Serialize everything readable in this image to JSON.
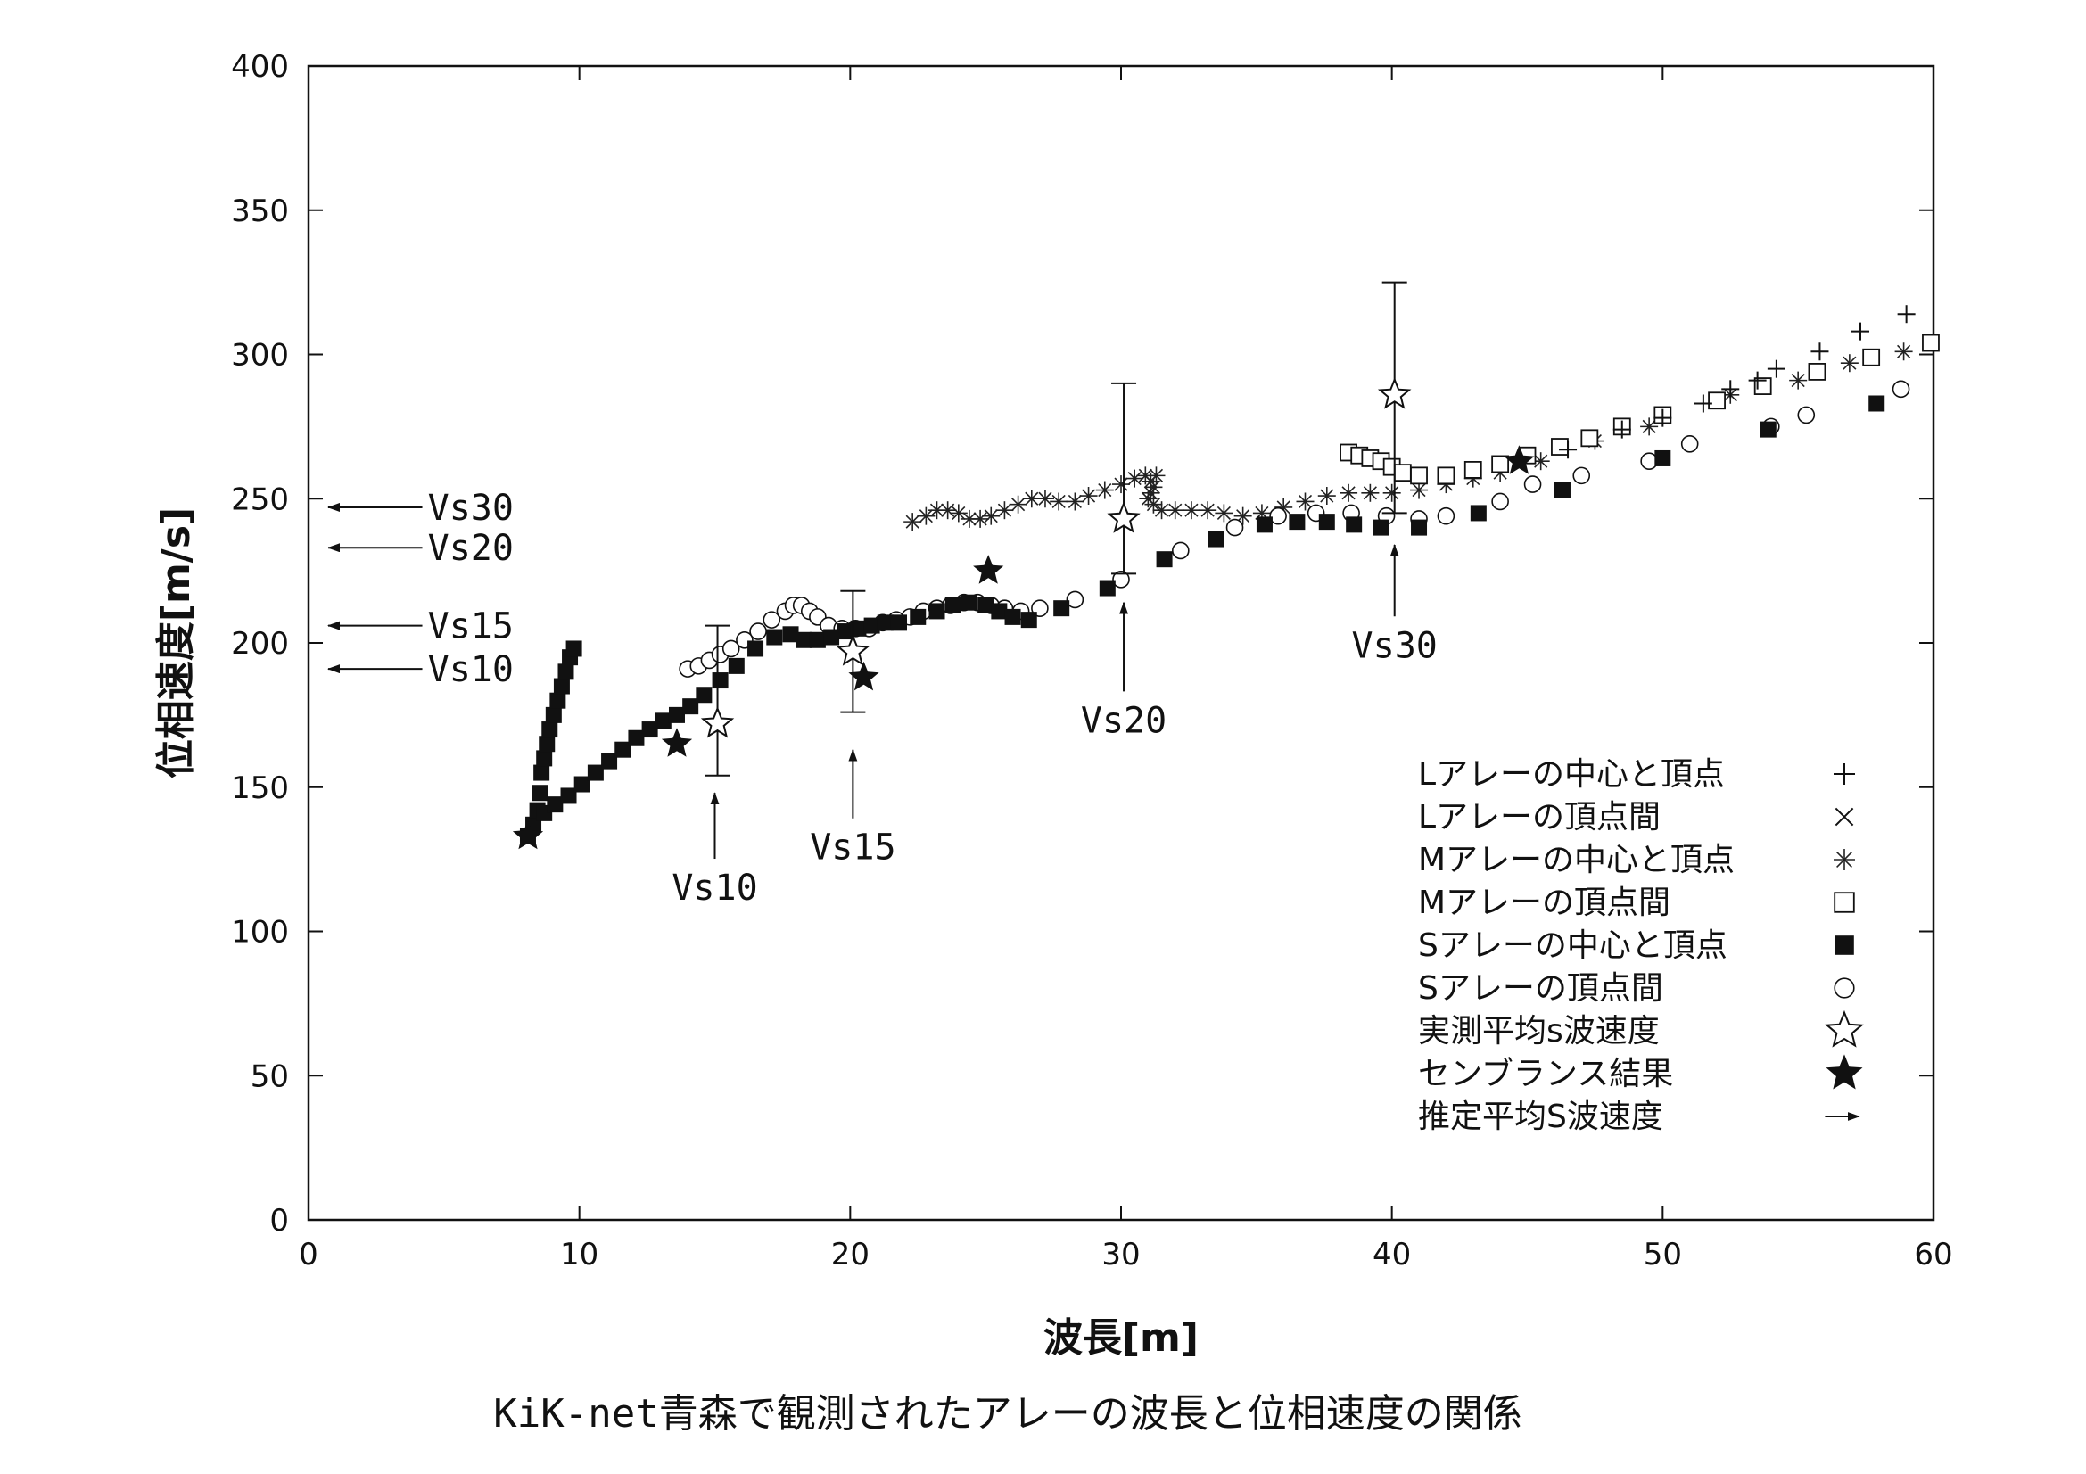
{
  "chart_data": {
    "type": "scatter",
    "title": "",
    "caption": "KiK-net青森で観測されたアレーの波長と位相速度の関係",
    "xlabel": "波長[m]",
    "ylabel": "位相速度[m/s]",
    "xlim": [
      0,
      60
    ],
    "ylim": [
      0,
      400
    ],
    "xticks": [
      0,
      10,
      20,
      30,
      40,
      50,
      60
    ],
    "yticks": [
      0,
      50,
      100,
      150,
      200,
      250,
      300,
      350,
      400
    ],
    "grid": false,
    "legend_position": "bottom-right",
    "series": [
      {
        "name": "Lアレーの中心と頂点",
        "marker": "+",
        "symbol": "＋",
        "points": [
          [
            46.5,
            267
          ],
          [
            48.5,
            274
          ],
          [
            50,
            278
          ],
          [
            51.5,
            283
          ],
          [
            52.5,
            288
          ],
          [
            53.5,
            291
          ],
          [
            54.2,
            295
          ],
          [
            55.8,
            301
          ],
          [
            57.3,
            308
          ],
          [
            59,
            314
          ]
        ]
      },
      {
        "name": "Lアレーの頂点間",
        "marker": "x",
        "symbol": "×",
        "points": []
      },
      {
        "name": "Mアレーの中心と頂点",
        "marker": "asterisk",
        "symbol": "※",
        "points": [
          [
            22.3,
            242
          ],
          [
            22.8,
            244
          ],
          [
            23.2,
            246
          ],
          [
            23.6,
            246
          ],
          [
            24,
            245
          ],
          [
            24.4,
            243
          ],
          [
            24.8,
            243
          ],
          [
            25.2,
            244
          ],
          [
            25.7,
            246
          ],
          [
            26.2,
            248
          ],
          [
            26.7,
            250
          ],
          [
            27.2,
            250
          ],
          [
            27.7,
            249
          ],
          [
            28.3,
            249
          ],
          [
            28.8,
            251
          ],
          [
            29.4,
            253
          ],
          [
            30,
            255
          ],
          [
            30.5,
            257
          ],
          [
            30.9,
            258
          ],
          [
            31.3,
            258
          ],
          [
            31.1,
            256
          ],
          [
            31.2,
            254
          ],
          [
            31.1,
            252
          ],
          [
            31,
            250
          ],
          [
            31.2,
            248
          ],
          [
            31.5,
            246
          ],
          [
            32,
            246
          ],
          [
            32.6,
            246
          ],
          [
            33.2,
            246
          ],
          [
            33.8,
            245
          ],
          [
            34.5,
            244
          ],
          [
            35.2,
            245
          ],
          [
            36,
            247
          ],
          [
            36.8,
            249
          ],
          [
            37.6,
            251
          ],
          [
            38.4,
            252
          ],
          [
            39.2,
            252
          ],
          [
            40,
            252
          ],
          [
            41,
            253
          ],
          [
            42,
            255
          ],
          [
            43,
            257
          ],
          [
            44,
            259
          ],
          [
            45.5,
            263
          ],
          [
            47.5,
            270
          ],
          [
            49.5,
            275
          ],
          [
            52.5,
            286
          ],
          [
            55,
            291
          ],
          [
            56.9,
            297
          ],
          [
            58.9,
            301
          ]
        ]
      },
      {
        "name": "Mアレーの頂点間",
        "marker": "open-square",
        "symbol": "□",
        "points": [
          [
            38.4,
            266
          ],
          [
            38.8,
            265
          ],
          [
            39.2,
            264
          ],
          [
            39.6,
            263
          ],
          [
            40,
            261
          ],
          [
            40.4,
            259
          ],
          [
            41,
            258
          ],
          [
            42,
            258
          ],
          [
            43,
            260
          ],
          [
            44,
            262
          ],
          [
            45,
            265
          ],
          [
            46.2,
            268
          ],
          [
            47.3,
            271
          ],
          [
            48.5,
            275
          ],
          [
            50,
            279
          ],
          [
            52,
            284
          ],
          [
            53.7,
            289
          ],
          [
            55.7,
            294
          ],
          [
            57.7,
            299
          ],
          [
            59.9,
            304
          ]
        ]
      },
      {
        "name": "Sアレーの中心と頂点",
        "marker": "filled-square",
        "symbol": "■",
        "points": [
          [
            8.1,
            133
          ],
          [
            8.3,
            137
          ],
          [
            8.45,
            142
          ],
          [
            8.55,
            148
          ],
          [
            8.6,
            155
          ],
          [
            8.7,
            160
          ],
          [
            8.8,
            165
          ],
          [
            8.9,
            170
          ],
          [
            9.05,
            175
          ],
          [
            9.2,
            180
          ],
          [
            9.35,
            185
          ],
          [
            9.5,
            190
          ],
          [
            9.65,
            195
          ],
          [
            9.8,
            198
          ],
          [
            8.7,
            141
          ],
          [
            9.1,
            144
          ],
          [
            9.6,
            147
          ],
          [
            10.1,
            151
          ],
          [
            10.6,
            155
          ],
          [
            11.1,
            159
          ],
          [
            11.6,
            163
          ],
          [
            12.1,
            167
          ],
          [
            12.6,
            170
          ],
          [
            13.1,
            173
          ],
          [
            13.6,
            175
          ],
          [
            14.1,
            178
          ],
          [
            14.6,
            182
          ],
          [
            15.2,
            187
          ],
          [
            15.8,
            192
          ],
          [
            16.5,
            198
          ],
          [
            17.2,
            202
          ],
          [
            17.8,
            203
          ],
          [
            18.3,
            201
          ],
          [
            18.8,
            201
          ],
          [
            19.3,
            202
          ],
          [
            19.8,
            204
          ],
          [
            20.3,
            205
          ],
          [
            20.8,
            206
          ],
          [
            21.3,
            207
          ],
          [
            21.8,
            207
          ],
          [
            22.5,
            209
          ],
          [
            23.2,
            211
          ],
          [
            23.8,
            213
          ],
          [
            24.4,
            214
          ],
          [
            25,
            213
          ],
          [
            25.5,
            211
          ],
          [
            26,
            209
          ],
          [
            26.6,
            208
          ],
          [
            27.8,
            212
          ],
          [
            29.5,
            219
          ],
          [
            31.6,
            229
          ],
          [
            33.5,
            236
          ],
          [
            35.3,
            241
          ],
          [
            36.5,
            242
          ],
          [
            37.6,
            242
          ],
          [
            38.6,
            241
          ],
          [
            39.6,
            240
          ],
          [
            41,
            240
          ],
          [
            43.2,
            245
          ],
          [
            46.3,
            253
          ],
          [
            50,
            264
          ],
          [
            53.9,
            274
          ],
          [
            57.9,
            283
          ]
        ]
      },
      {
        "name": "Sアレーの頂点間",
        "marker": "open-circle",
        "symbol": "○",
        "points": [
          [
            14,
            191
          ],
          [
            14.4,
            192
          ],
          [
            14.8,
            194
          ],
          [
            15.2,
            196
          ],
          [
            15.6,
            198
          ],
          [
            16.1,
            201
          ],
          [
            16.6,
            204
          ],
          [
            17.1,
            208
          ],
          [
            17.6,
            211
          ],
          [
            17.9,
            213
          ],
          [
            18.2,
            213
          ],
          [
            18.5,
            211
          ],
          [
            18.8,
            209
          ],
          [
            19.2,
            206
          ],
          [
            19.7,
            205
          ],
          [
            20.2,
            205
          ],
          [
            20.7,
            205
          ],
          [
            21.2,
            207
          ],
          [
            21.7,
            208
          ],
          [
            22.2,
            209
          ],
          [
            22.7,
            211
          ],
          [
            23.2,
            212
          ],
          [
            23.7,
            213
          ],
          [
            24.2,
            214
          ],
          [
            24.7,
            214
          ],
          [
            25.2,
            213
          ],
          [
            25.7,
            212
          ],
          [
            26.3,
            211
          ],
          [
            27,
            212
          ],
          [
            28.3,
            215
          ],
          [
            30,
            222
          ],
          [
            32.2,
            232
          ],
          [
            34.2,
            240
          ],
          [
            35.8,
            244
          ],
          [
            37.2,
            245
          ],
          [
            38.5,
            245
          ],
          [
            39.8,
            244
          ],
          [
            41,
            243
          ],
          [
            42,
            244
          ],
          [
            44,
            249
          ],
          [
            45.2,
            255
          ],
          [
            47,
            258
          ],
          [
            49.5,
            263
          ],
          [
            51,
            269
          ],
          [
            54,
            275
          ],
          [
            55.3,
            279
          ],
          [
            58.8,
            288
          ]
        ]
      },
      {
        "name": "実測平均s波速度",
        "marker": "open-star",
        "symbol": "☆",
        "points": [
          [
            15.1,
            172,
            154,
            206
          ],
          [
            20.1,
            197,
            176,
            218
          ],
          [
            30.1,
            243,
            224,
            290
          ],
          [
            40.1,
            286,
            245,
            325
          ]
        ]
      },
      {
        "name": "センブランス結果",
        "marker": "filled-star",
        "symbol": "★",
        "points": [
          [
            8.1,
            133
          ],
          [
            13.6,
            165
          ],
          [
            20.5,
            188
          ],
          [
            25.1,
            225
          ],
          [
            44.7,
            263
          ]
        ]
      },
      {
        "name": "推定平均S波速度",
        "marker": "arrow",
        "symbol": "→",
        "points": [
          [
            0,
            247
          ],
          [
            0,
            233
          ],
          [
            0,
            206
          ],
          [
            0,
            191
          ]
        ]
      }
    ],
    "annotations": [
      {
        "text": "Vs30",
        "kind": "horizontal-arrow",
        "y": 247
      },
      {
        "text": "Vs20",
        "kind": "horizontal-arrow",
        "y": 233
      },
      {
        "text": "Vs15",
        "kind": "horizontal-arrow",
        "y": 206
      },
      {
        "text": "Vs10",
        "kind": "horizontal-arrow",
        "y": 191
      },
      {
        "text": "Vs10",
        "kind": "vertical-arrow",
        "x": 15,
        "y_from": 148,
        "y_to": 119
      },
      {
        "text": "Vs15",
        "kind": "vertical-arrow",
        "x": 20.1,
        "y_from": 163,
        "y_to": 133
      },
      {
        "text": "Vs20",
        "kind": "vertical-arrow",
        "x": 30.1,
        "y_from": 214,
        "y_to": 177
      },
      {
        "text": "Vs30",
        "kind": "vertical-arrow",
        "x": 40.1,
        "y_from": 234,
        "y_to": 203
      }
    ]
  }
}
